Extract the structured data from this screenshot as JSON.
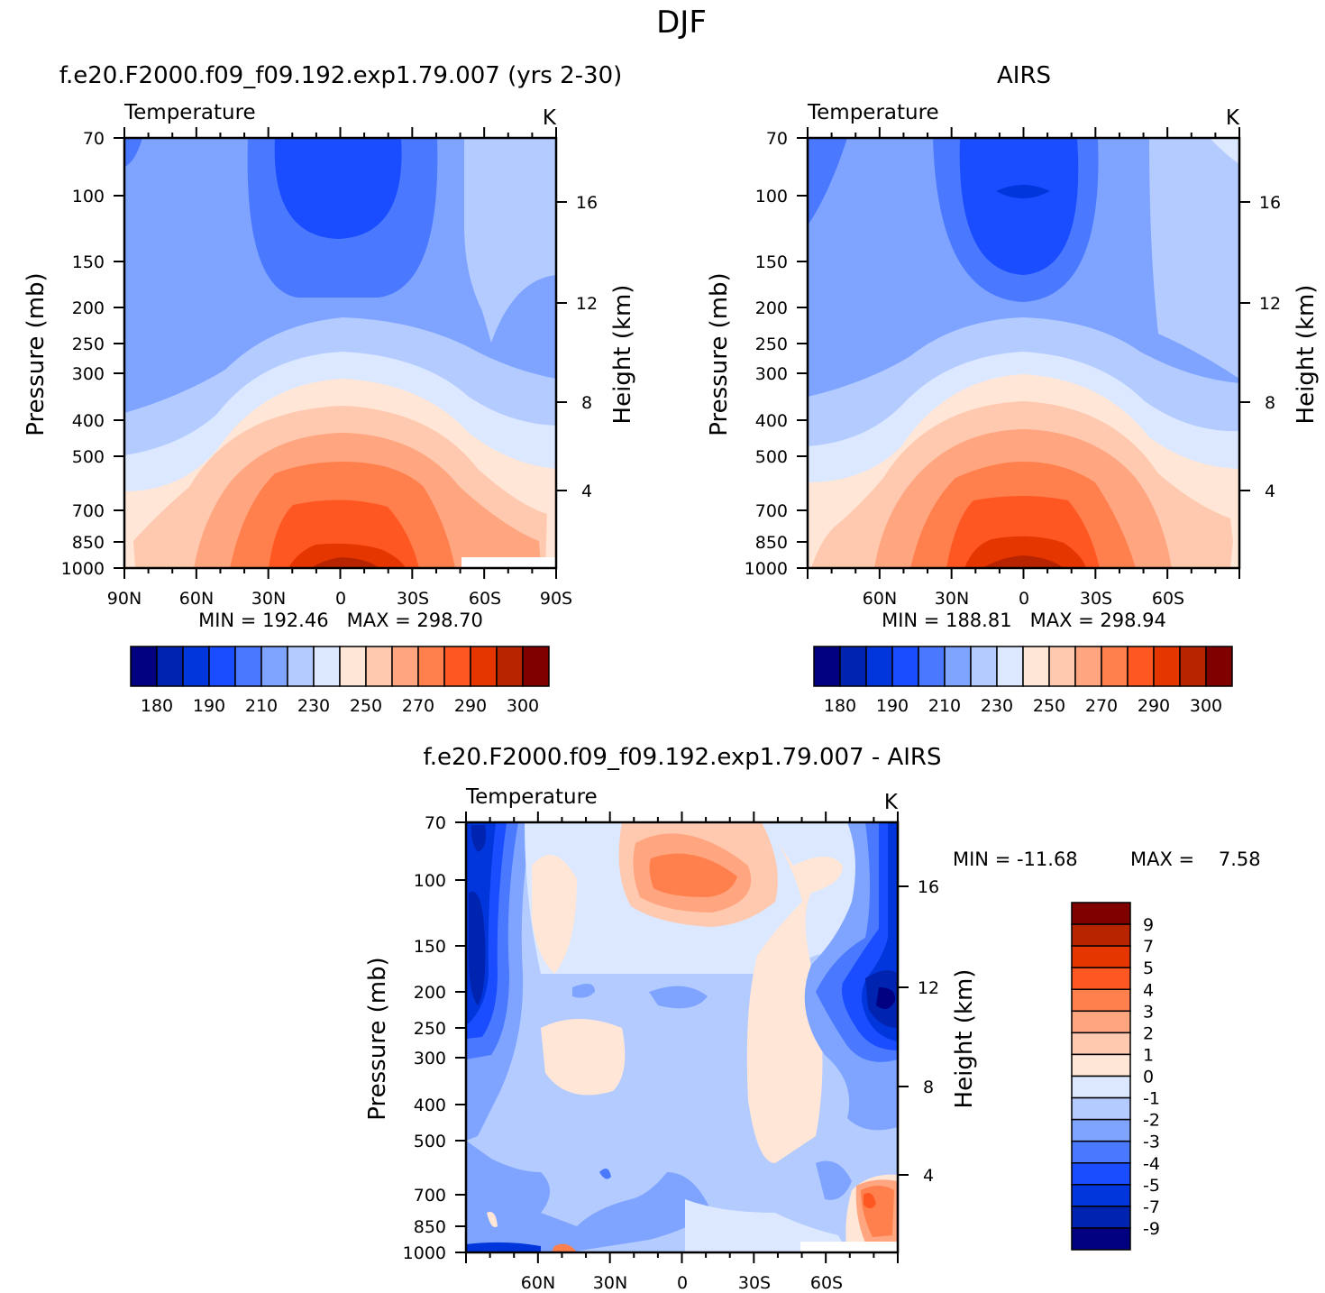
{
  "figure": {
    "title": "DJF"
  },
  "chart_data": [
    {
      "type": "heatmap",
      "title": "f.e20.F2000.f09_f09.192.exp1.79.007 (yrs 2-30)",
      "subtitle_left": "Temperature",
      "units": "K",
      "ylabel": "Pressure (mb)",
      "ylabel_right": "Height (km)",
      "yticks": [
        "70",
        "100",
        "150",
        "200",
        "250",
        "300",
        "400",
        "500",
        "700",
        "850",
        "1000"
      ],
      "yticks_right": [
        "16",
        "12",
        "8",
        "4"
      ],
      "xticks": [
        "90N",
        "60N",
        "30N",
        "0",
        "30S",
        "60S",
        "90S"
      ],
      "stats": "MIN = 192.46   MAX = 298.70",
      "levels": [
        180,
        190,
        210,
        230,
        250,
        270,
        290,
        300
      ],
      "colorbar_colors": [
        "#000080",
        "#0024b0",
        "#0036db",
        "#1a4dff",
        "#4a79ff",
        "#7fa4ff",
        "#b3cbff",
        "#dbe8ff",
        "#ffe6d6",
        "#ffc9b0",
        "#ffa680",
        "#ff7f4d",
        "#ff5722",
        "#e63600",
        "#b82400",
        "#800000"
      ]
    },
    {
      "type": "heatmap",
      "title": "AIRS",
      "subtitle_left": "Temperature",
      "units": "K",
      "ylabel": "Pressure (mb)",
      "ylabel_right": "Height (km)",
      "yticks": [
        "70",
        "100",
        "150",
        "200",
        "250",
        "300",
        "400",
        "500",
        "700",
        "850",
        "1000"
      ],
      "yticks_right": [
        "16",
        "12",
        "8",
        "4"
      ],
      "xticks": [
        "60N",
        "30N",
        "0",
        "30S",
        "60S"
      ],
      "stats": "MIN = 188.81   MAX = 298.94",
      "levels": [
        180,
        190,
        210,
        230,
        250,
        270,
        290,
        300
      ],
      "colorbar_colors": [
        "#000080",
        "#0024b0",
        "#0036db",
        "#1a4dff",
        "#4a79ff",
        "#7fa4ff",
        "#b3cbff",
        "#dbe8ff",
        "#ffe6d6",
        "#ffc9b0",
        "#ffa680",
        "#ff7f4d",
        "#ff5722",
        "#e63600",
        "#b82400",
        "#800000"
      ]
    },
    {
      "type": "heatmap",
      "title": "f.e20.F2000.f09_f09.192.exp1.79.007 - AIRS",
      "subtitle_left": "Temperature",
      "units": "K",
      "ylabel": "Pressure (mb)",
      "ylabel_right": "Height (km)",
      "yticks": [
        "70",
        "100",
        "150",
        "200",
        "250",
        "300",
        "400",
        "500",
        "700",
        "850",
        "1000"
      ],
      "yticks_right": [
        "16",
        "12",
        "8",
        "4"
      ],
      "xticks": [
        "60N",
        "30N",
        "0",
        "30S",
        "60S"
      ],
      "stats_min": "MIN = -11.68",
      "stats_max": "MAX =    7.58",
      "levels": [
        9,
        7,
        5,
        4,
        3,
        2,
        1,
        0,
        -1,
        -2,
        -3,
        -4,
        -5,
        -7,
        -9
      ],
      "colorbar_colors": [
        "#800000",
        "#b82400",
        "#e63600",
        "#ff5722",
        "#ff7f4d",
        "#ffa680",
        "#ffc9b0",
        "#ffe6d6",
        "#dbe8ff",
        "#b3cbff",
        "#7fa4ff",
        "#4a79ff",
        "#1a4dff",
        "#0036db",
        "#0024b0",
        "#000080"
      ]
    }
  ]
}
